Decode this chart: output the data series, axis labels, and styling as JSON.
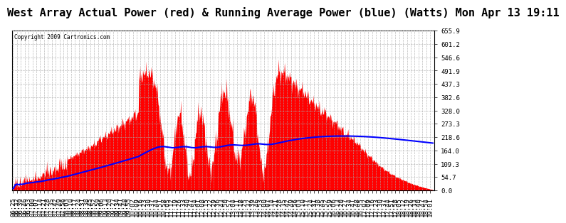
{
  "title": "West Array Actual Power (red) & Running Average Power (blue) (Watts) Mon Apr 13 19:11",
  "copyright": "Copyright 2009 Cartronics.com",
  "yticks": [
    0.0,
    54.7,
    109.3,
    164.0,
    218.6,
    273.3,
    328.0,
    382.6,
    437.3,
    491.9,
    546.6,
    601.2,
    655.9
  ],
  "ymin": 0.0,
  "ymax": 655.9,
  "bg_color": "#ffffff",
  "plot_bg_color": "#ffffff",
  "grid_color": "#aaaaaa",
  "actual_color": "#ff0000",
  "avg_color": "#0000ff",
  "title_fontsize": 11,
  "tick_fontsize": 6.5
}
